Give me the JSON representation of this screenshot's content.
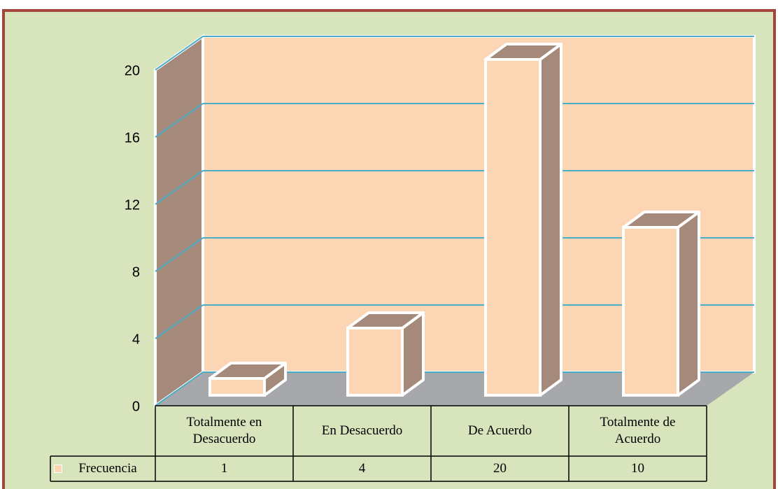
{
  "chart_data": {
    "type": "bar3d",
    "categories": [
      "Totalmente en Desacuerdo",
      "En Desacuerdo",
      "De Acuerdo",
      "Totalmente de Acuerdo"
    ],
    "series": [
      {
        "name": "Frecuencia",
        "color": "#fcd5b5",
        "values": [
          1,
          4,
          20,
          10
        ]
      }
    ],
    "ylim": [
      0,
      20
    ],
    "yticks": [
      0,
      4,
      8,
      12,
      16,
      20
    ],
    "grid": true,
    "legend": "table"
  }
}
